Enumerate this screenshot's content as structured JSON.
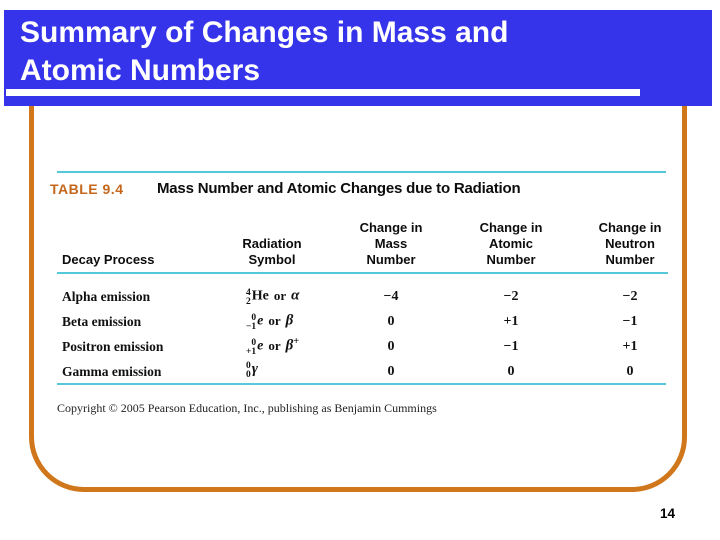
{
  "slide": {
    "title_line1": "Summary of Changes in Mass and",
    "title_line2": "Atomic Numbers",
    "page_number": "14"
  },
  "colors": {
    "banner_blue": "#3634ea",
    "frame_orange": "#d0771c",
    "table_label_orange": "#c4671c",
    "rule_cyan": "#55c8da",
    "text_black": "#0d0d0d"
  },
  "table": {
    "label": "TABLE 9.4",
    "caption": "Mass Number and Atomic Changes due to Radiation",
    "headers": [
      {
        "lines": [
          "Decay Process"
        ]
      },
      {
        "lines": [
          "Radiation",
          "Symbol"
        ]
      },
      {
        "lines": [
          "Change in",
          "Mass",
          "Number"
        ]
      },
      {
        "lines": [
          "Change in",
          "Atomic",
          "Number"
        ]
      },
      {
        "lines": [
          "Change in",
          "Neutron",
          "Number"
        ]
      }
    ],
    "rows": [
      {
        "process": "Alpha emission",
        "nuclide": {
          "sup": "4",
          "sub": "2",
          "body": "He"
        },
        "or": "or",
        "greek": "α",
        "greek_sup": "",
        "mass": "−4",
        "atomic": "−2",
        "neutron": "−2"
      },
      {
        "process": "Beta emission",
        "nuclide": {
          "sup": "0",
          "sub": "−1",
          "body": "e"
        },
        "or": "or",
        "greek": "β",
        "greek_sup": "",
        "mass": "0",
        "atomic": "+1",
        "neutron": "−1"
      },
      {
        "process": "Positron emission",
        "nuclide": {
          "sup": "0",
          "sub": "+1",
          "body": "e"
        },
        "or": "or",
        "greek": "β",
        "greek_sup": "+",
        "mass": "0",
        "atomic": "−1",
        "neutron": "+1"
      },
      {
        "process": "Gamma emission",
        "nuclide": {
          "sup": "0",
          "sub": "0",
          "body": ""
        },
        "or": "",
        "greek": "γ",
        "greek_sup": "",
        "mass": "0",
        "atomic": "0",
        "neutron": "0"
      }
    ],
    "copyright": "Copyright © 2005 Pearson Education, Inc., publishing as Benjamin Cummings"
  }
}
